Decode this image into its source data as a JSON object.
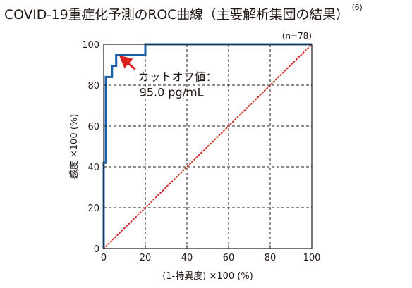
{
  "title": "COVID-19重症化予測のROC曲線（主要解析集団の結果）",
  "title_ref": "(6)",
  "chart_data": {
    "type": "line",
    "xlabel": "(1-特異度) ×100 (%)",
    "ylabel": "感度 ×100 (%)",
    "xlim": [
      0,
      100
    ],
    "ylim": [
      0,
      100
    ],
    "x_ticks": [
      "0",
      "20",
      "40",
      "60",
      "80",
      "100"
    ],
    "y_ticks": [
      "0",
      "20",
      "40",
      "60",
      "80",
      "100"
    ],
    "grid": true,
    "sample_label": "(n=78)",
    "series": [
      {
        "style": "solid",
        "color": "#1a5fa8",
        "x": [
          0,
          0,
          1,
          1,
          2,
          2,
          4,
          4,
          6,
          6,
          7,
          7,
          20,
          20,
          100
        ],
        "y": [
          0,
          42,
          42,
          84,
          84,
          84,
          84,
          89.5,
          89.5,
          95,
          95,
          95,
          95,
          100,
          100
        ]
      },
      {
        "style": "dotted",
        "color": "#d42a2a",
        "x": [
          0,
          100
        ],
        "y": [
          0,
          100
        ]
      }
    ],
    "annotation": {
      "line1": "カットオフ値：",
      "line2": "95.0 pg/mL",
      "arrow_color": "#e02020",
      "point": [
        7,
        95
      ]
    }
  }
}
